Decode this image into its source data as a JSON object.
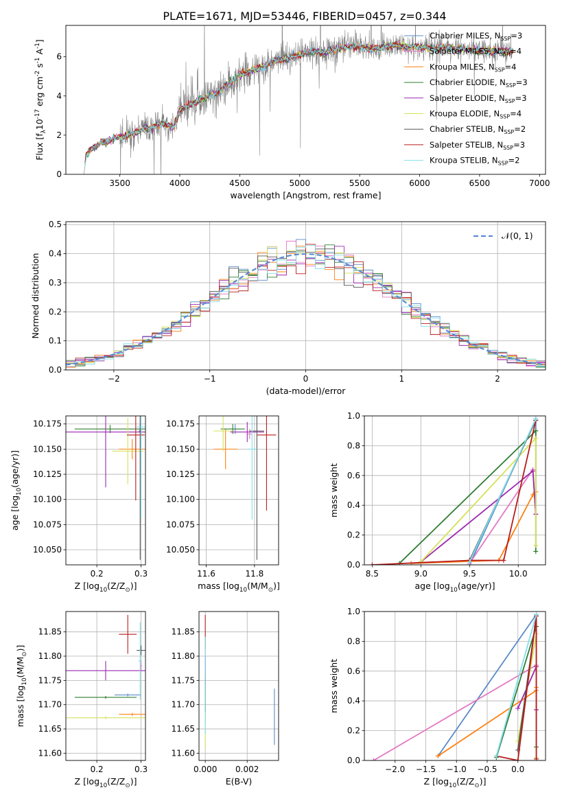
{
  "figure": {
    "title": "PLATE=1671, MJD=53446, FIBERID=0457, z=0.344"
  },
  "colors": {
    "chabrier_miles": "#5a8ac8",
    "salpeter_miles": "#e377c2",
    "kroupa_miles": "#ff7f0e",
    "chabrier_elodie": "#2e7d32",
    "salpeter_elodie": "#9c27b0",
    "kroupa_elodie": "#d4e157",
    "chabrier_stelib": "#555555",
    "salpeter_stelib": "#b71c1c",
    "kroupa_stelib": "#80deea",
    "spectrum": "#808080",
    "normal_curve": "#5b8bd6",
    "grid": "#b0b0b0"
  },
  "chart_data": [
    {
      "id": "spectrum",
      "type": "line",
      "xlabel": "wavelength [Angstrom, rest frame]",
      "ylabel": "Flux [f$_\\lambda$10$^{-17}$ erg cm$^{-2}$ s$^{-1}$ A$^{-1}$]",
      "xlim": [
        3050,
        7050
      ],
      "ylim": [
        0,
        7.6
      ],
      "xticks": [
        3500,
        4000,
        4500,
        5000,
        5500,
        6000,
        6500,
        7000
      ],
      "yticks": [
        0,
        2,
        4,
        6
      ],
      "grid": false,
      "legend_position": "right",
      "legend": [
        {
          "label": "Chabrier MILES, N",
          "sub": "SSP",
          "value": "=3",
          "color_key": "chabrier_miles"
        },
        {
          "label": "Salpeter MILES, N",
          "sub": "SSP",
          "value": "=4",
          "color_key": "salpeter_miles"
        },
        {
          "label": "Kroupa MILES, N",
          "sub": "SSP",
          "value": "=4",
          "color_key": "kroupa_miles"
        },
        {
          "label": "Chabrier ELODIE, N",
          "sub": "SSP",
          "value": "=3",
          "color_key": "chabrier_elodie"
        },
        {
          "label": "Salpeter ELODIE, N",
          "sub": "SSP",
          "value": "=3",
          "color_key": "salpeter_elodie"
        },
        {
          "label": "Kroupa ELODIE, N",
          "sub": "SSP",
          "value": "=4",
          "color_key": "kroupa_elodie"
        },
        {
          "label": "Chabrier STELIB, N",
          "sub": "SSP",
          "value": "=2",
          "color_key": "chabrier_stelib"
        },
        {
          "label": "Salpeter STELIB, N",
          "sub": "SSP",
          "value": "=3",
          "color_key": "salpeter_stelib"
        },
        {
          "label": "Kroupa STELIB, N",
          "sub": "SSP",
          "value": "=2",
          "color_key": "kroupa_stelib"
        }
      ],
      "continuum": [
        [
          3200,
          0
        ],
        [
          3220,
          1.0
        ],
        [
          3260,
          1.3
        ],
        [
          3300,
          1.45
        ],
        [
          3350,
          1.6
        ],
        [
          3400,
          1.7
        ],
        [
          3450,
          1.85
        ],
        [
          3500,
          1.9
        ],
        [
          3550,
          2.0
        ],
        [
          3600,
          2.05
        ],
        [
          3650,
          2.15
        ],
        [
          3700,
          2.4
        ],
        [
          3750,
          2.3
        ],
        [
          3800,
          2.5
        ],
        [
          3850,
          2.6
        ],
        [
          3900,
          2.5
        ],
        [
          3950,
          2.4
        ],
        [
          4000,
          3.3
        ],
        [
          4100,
          3.6
        ],
        [
          4200,
          3.9
        ],
        [
          4300,
          4.1
        ],
        [
          4400,
          4.6
        ],
        [
          4500,
          5.1
        ],
        [
          4600,
          5.3
        ],
        [
          4700,
          5.5
        ],
        [
          4800,
          5.8
        ],
        [
          4900,
          5.9
        ],
        [
          5000,
          6.1
        ],
        [
          5100,
          6.3
        ],
        [
          5200,
          6.2
        ],
        [
          5300,
          6.4
        ],
        [
          5400,
          6.5
        ],
        [
          5500,
          6.5
        ],
        [
          5600,
          6.4
        ],
        [
          5700,
          6.5
        ],
        [
          5800,
          6.6
        ],
        [
          5900,
          6.5
        ],
        [
          6000,
          6.5
        ],
        [
          6100,
          6.4
        ],
        [
          6200,
          6.5
        ],
        [
          6300,
          6.4
        ],
        [
          6400,
          6.4
        ],
        [
          6500,
          6.3
        ],
        [
          6600,
          6.3
        ],
        [
          6700,
          6.3
        ],
        [
          6780,
          6.3
        ]
      ]
    },
    {
      "id": "residuals",
      "type": "line",
      "xlabel": "(data-model)/error",
      "ylabel": "Normed distribution",
      "xlim": [
        -2.5,
        2.5
      ],
      "ylim": [
        0,
        0.51
      ],
      "xticks": [
        -2,
        -1,
        0,
        1,
        2
      ],
      "yticks": [
        0.0,
        0.1,
        0.2,
        0.3,
        0.4,
        0.5
      ],
      "grid": true,
      "legend_position": "top-right",
      "legend": [
        {
          "label": "𝒩(0, 1)",
          "color_key": "normal_curve"
        }
      ],
      "bin_width": 0.1
    },
    {
      "id": "age_vs_z",
      "type": "scatter",
      "xlabel": "Z [log$_{10}$(Z/Z$_\\odot$)]",
      "ylabel": "age  [log$_{10}$(age/yr)]",
      "xlim": [
        0.13,
        0.31
      ],
      "ylim": [
        10.035,
        10.183
      ],
      "xticks": [
        0.2,
        0.3
      ],
      "yticks": [
        10.05,
        10.075,
        10.1,
        10.125,
        10.15,
        10.175
      ],
      "grid": true,
      "points": [
        {
          "color_key": "chabrier_miles",
          "x": 0.298,
          "xerr": 0.005,
          "y": 10.17,
          "yerr": 0.004
        },
        {
          "color_key": "salpeter_miles",
          "x": 0.3,
          "xerr": 0.002,
          "y": 10.165,
          "yerr": 0.005
        },
        {
          "color_key": "kroupa_miles",
          "x": 0.28,
          "xerr": 0.03,
          "y": 10.15,
          "yerr": 0.01
        },
        {
          "color_key": "chabrier_elodie",
          "x": 0.23,
          "xerr": 0.08,
          "y": 10.17,
          "yerr": 0.004
        },
        {
          "color_key": "salpeter_elodie",
          "x": 0.22,
          "xerr": 0.09,
          "y": 10.167,
          "yerr": 0.055
        },
        {
          "color_key": "kroupa_elodie",
          "x": 0.27,
          "xerr": 0.035,
          "y": 10.148,
          "yerr": 0.033
        },
        {
          "color_key": "chabrier_stelib",
          "x": 0.298,
          "xerr": 0.003,
          "y": 10.168,
          "yerr": 0.128
        },
        {
          "color_key": "salpeter_stelib",
          "x": 0.288,
          "xerr": 0.02,
          "y": 10.164,
          "yerr": 0.065
        },
        {
          "color_key": "kroupa_stelib",
          "x": 0.3,
          "xerr": 0.01,
          "y": 10.172,
          "yerr": 0.09
        }
      ]
    },
    {
      "id": "age_vs_mass",
      "type": "scatter",
      "xlabel": "mass [log$_{10}$(M/M$_\\odot$)]",
      "ylabel": "",
      "xlim": [
        11.57,
        11.9
      ],
      "ylim": [
        10.035,
        10.183
      ],
      "xticks": [
        11.6,
        11.8
      ],
      "yticks": [
        10.05,
        10.075,
        10.1,
        10.125,
        10.15,
        10.175
      ],
      "grid": true,
      "points": [
        {
          "color_key": "chabrier_miles",
          "x": 11.72,
          "xerr": 0.015,
          "y": 10.17,
          "yerr": 0.005
        },
        {
          "color_key": "salpeter_miles",
          "x": 11.78,
          "xerr": 0.01,
          "y": 10.165,
          "yerr": 0.005
        },
        {
          "color_key": "kroupa_miles",
          "x": 11.68,
          "xerr": 0.05,
          "y": 10.15,
          "yerr": 0.02
        },
        {
          "color_key": "chabrier_elodie",
          "x": 11.71,
          "xerr": 0.05,
          "y": 10.17,
          "yerr": 0.005
        },
        {
          "color_key": "salpeter_elodie",
          "x": 11.77,
          "xerr": 0.07,
          "y": 10.167,
          "yerr": 0.01
        },
        {
          "color_key": "kroupa_elodie",
          "x": 11.67,
          "xerr": 0.04,
          "y": 10.168,
          "yerr": 0.02
        },
        {
          "color_key": "chabrier_stelib",
          "x": 11.81,
          "xerr": 0.03,
          "y": 10.168,
          "yerr": 0.128
        },
        {
          "color_key": "salpeter_stelib",
          "x": 11.85,
          "xerr": 0.04,
          "y": 10.164,
          "yerr": 0.075
        },
        {
          "color_key": "kroupa_stelib",
          "x": 11.79,
          "xerr": 0.02,
          "y": 10.15,
          "yerr": 0.07
        }
      ]
    },
    {
      "id": "weight_vs_age",
      "type": "line",
      "xlabel": "age  [log$_{10}$(age/yr)]",
      "ylabel": "mass weight",
      "xlim": [
        8.42,
        10.28
      ],
      "ylim": [
        0,
        1.0
      ],
      "xticks": [
        8.5,
        9.0,
        9.5,
        10.0
      ],
      "yticks": [
        0.0,
        0.2,
        0.4,
        0.6,
        0.8,
        1.0
      ],
      "grid": true,
      "series": [
        {
          "color_key": "chabrier_miles",
          "x": [
            9.5,
            10.18,
            10.18
          ],
          "y": [
            0.0,
            0.98,
            0.9
          ]
        },
        {
          "color_key": "salpeter_miles",
          "x": [
            9.5,
            10.15,
            10.18
          ],
          "y": [
            0.01,
            0.64,
            0.34
          ]
        },
        {
          "color_key": "kroupa_miles",
          "x": [
            8.9,
            9.8,
            10.15,
            10.18
          ],
          "y": [
            0.01,
            0.03,
            0.47,
            0.49
          ]
        },
        {
          "color_key": "chabrier_elodie",
          "x": [
            8.78,
            10.18,
            10.18
          ],
          "y": [
            0.01,
            0.9,
            0.09
          ]
        },
        {
          "color_key": "salpeter_elodie",
          "x": [
            9.0,
            10.15,
            10.18
          ],
          "y": [
            0.02,
            0.63,
            0.34
          ]
        },
        {
          "color_key": "kroupa_elodie",
          "x": [
            9.0,
            10.18,
            10.18
          ],
          "y": [
            0.02,
            0.85,
            0.13
          ]
        },
        {
          "color_key": "chabrier_stelib",
          "x": [
            9.5,
            10.18
          ],
          "y": [
            0.03,
            0.97
          ]
        },
        {
          "color_key": "salpeter_stelib",
          "x": [
            8.5,
            9.5,
            9.85,
            10.18
          ],
          "y": [
            0.0,
            0.03,
            0.03,
            0.97
          ]
        },
        {
          "color_key": "kroupa_stelib",
          "x": [
            9.5,
            10.18
          ],
          "y": [
            0.02,
            0.98
          ]
        }
      ]
    },
    {
      "id": "mass_vs_z",
      "type": "scatter",
      "xlabel": "Z [log$_{10}$(Z/Z$_\\odot$)]",
      "ylabel": "mass [log$_{10}$(M/M$_\\odot$)]",
      "xlim": [
        0.13,
        0.31
      ],
      "ylim": [
        11.585,
        11.892
      ],
      "xticks": [
        0.2,
        0.3
      ],
      "yticks": [
        11.6,
        11.65,
        11.7,
        11.75,
        11.8,
        11.85
      ],
      "grid": true,
      "points": [
        {
          "color_key": "chabrier_miles",
          "x": 0.27,
          "xerr": 0.03,
          "y": 11.72,
          "yerr": 0.003
        },
        {
          "color_key": "salpeter_miles",
          "x": 0.3,
          "xerr": 0.002,
          "y": 11.78,
          "yerr": 0.01
        },
        {
          "color_key": "kroupa_miles",
          "x": 0.28,
          "xerr": 0.03,
          "y": 11.68,
          "yerr": 0.003
        },
        {
          "color_key": "chabrier_elodie",
          "x": 0.22,
          "xerr": 0.07,
          "y": 11.715,
          "yerr": 0.003
        },
        {
          "color_key": "salpeter_elodie",
          "x": 0.22,
          "xerr": 0.09,
          "y": 11.77,
          "yerr": 0.02
        },
        {
          "color_key": "kroupa_elodie",
          "x": 0.22,
          "xerr": 0.09,
          "y": 11.673,
          "yerr": 0.003
        },
        {
          "color_key": "chabrier_stelib",
          "x": 0.3,
          "xerr": 0.01,
          "y": 11.812,
          "yerr": 0.01
        },
        {
          "color_key": "salpeter_stelib",
          "x": 0.27,
          "xerr": 0.02,
          "y": 11.845,
          "yerr": 0.04
        },
        {
          "color_key": "kroupa_stelib",
          "x": 0.298,
          "xerr": 0.004,
          "y": 11.79,
          "yerr": 0.08
        }
      ]
    },
    {
      "id": "mass_vs_ebv",
      "type": "scatter",
      "xlabel": "E(B-V)",
      "ylabel": "",
      "xlim": [
        -0.0003,
        0.0035
      ],
      "ylim": [
        11.585,
        11.892
      ],
      "xticks": [
        0.0,
        0.002
      ],
      "xticklabels": [
        "0.000",
        "0.002"
      ],
      "yticks": [
        11.6,
        11.65,
        11.7,
        11.75,
        11.8,
        11.85
      ],
      "grid": true,
      "points": [
        {
          "color_key": "chabrier_miles",
          "x": 0.0033,
          "y": 11.675,
          "yerr": 0.058
        },
        {
          "color_key": "salpeter_miles",
          "x": 0.0,
          "y": 11.78,
          "yerr": 0.04
        },
        {
          "color_key": "kroupa_miles",
          "x": 0.0,
          "y": 11.68,
          "yerr": 0.02
        },
        {
          "color_key": "chabrier_elodie",
          "x": 0.0,
          "y": 11.715,
          "yerr": 0.03
        },
        {
          "color_key": "salpeter_elodie",
          "x": 0.0,
          "y": 11.77,
          "yerr": 0.03
        },
        {
          "color_key": "kroupa_elodie",
          "x": 0.0,
          "y": 11.66,
          "yerr": 0.05
        },
        {
          "color_key": "chabrier_stelib",
          "x": 0.0,
          "y": 11.72,
          "yerr": 0.035
        },
        {
          "color_key": "salpeter_stelib",
          "x": 0.0,
          "y": 11.85,
          "yerr": 0.035
        },
        {
          "color_key": "kroupa_stelib",
          "x": 0.0,
          "y": 11.74,
          "yerr": 0.1
        }
      ]
    },
    {
      "id": "weight_vs_z",
      "type": "line",
      "xlabel": "Z [log$_{10}$(Z/Z$_\\odot$)]",
      "ylabel": "mass weight",
      "xlim": [
        -2.5,
        0.45
      ],
      "ylim": [
        0,
        1.0
      ],
      "xticks": [
        -2.0,
        -1.5,
        -1.0,
        -0.5,
        0.0
      ],
      "yticks": [
        0.0,
        0.2,
        0.4,
        0.6,
        0.8,
        1.0
      ],
      "grid": true,
      "series": [
        {
          "color_key": "chabrier_miles",
          "x": [
            -1.3,
            0.3,
            0.3
          ],
          "y": [
            0.03,
            0.98,
            0.9
          ]
        },
        {
          "color_key": "salpeter_miles",
          "x": [
            -2.35,
            0.3,
            0.3
          ],
          "y": [
            0.0,
            0.64,
            0.34
          ]
        },
        {
          "color_key": "kroupa_miles",
          "x": [
            -1.3,
            0.3,
            0.3
          ],
          "y": [
            0.03,
            0.47,
            0.49
          ]
        },
        {
          "color_key": "chabrier_elodie",
          "x": [
            -0.35,
            0.3,
            0.3
          ],
          "y": [
            0.02,
            0.9,
            0.09
          ]
        },
        {
          "color_key": "salpeter_elodie",
          "x": [
            0.0,
            0.3,
            0.3
          ],
          "y": [
            0.35,
            0.63,
            0.34
          ]
        },
        {
          "color_key": "kroupa_elodie",
          "x": [
            0.0,
            0.3,
            0.3
          ],
          "y": [
            0.13,
            0.85,
            0.02
          ]
        },
        {
          "color_key": "chabrier_stelib",
          "x": [
            0.0,
            0.3
          ],
          "y": [
            0.07,
            0.97
          ]
        },
        {
          "color_key": "salpeter_stelib",
          "x": [
            -0.35,
            0.0,
            0.3,
            0.3
          ],
          "y": [
            0.03,
            0.0,
            0.97,
            0.01
          ]
        },
        {
          "color_key": "kroupa_stelib",
          "x": [
            -0.35,
            0.3
          ],
          "y": [
            0.03,
            0.98
          ]
        }
      ]
    }
  ]
}
